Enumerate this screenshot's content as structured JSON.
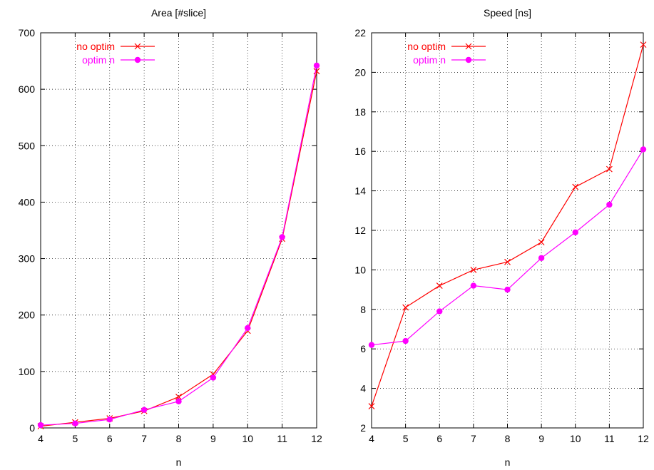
{
  "chart_data": [
    {
      "type": "line",
      "title": "Area [#slice]",
      "xlabel": "n",
      "ylabel": "",
      "x": [
        4,
        5,
        6,
        7,
        8,
        9,
        10,
        11,
        12
      ],
      "xlim": [
        4,
        12
      ],
      "ylim": [
        0,
        700
      ],
      "xticks": [
        4,
        5,
        6,
        7,
        8,
        9,
        10,
        11,
        12
      ],
      "yticks": [
        0,
        100,
        200,
        300,
        400,
        500,
        600,
        700
      ],
      "grid": true,
      "legend_position": "top-left",
      "series": [
        {
          "name": "no optim",
          "marker": "x",
          "color": "#ff0000",
          "values": [
            3,
            10,
            17,
            30,
            55,
            95,
            172,
            335,
            632
          ]
        },
        {
          "name": "optim n",
          "marker": "circle",
          "color": "#ff00ff",
          "values": [
            5,
            8,
            15,
            32,
            47,
            89,
            177,
            338,
            642
          ]
        }
      ]
    },
    {
      "type": "line",
      "title": "Speed [ns]",
      "xlabel": "n",
      "ylabel": "",
      "x": [
        4,
        5,
        6,
        7,
        8,
        9,
        10,
        11,
        12
      ],
      "xlim": [
        4,
        12
      ],
      "ylim": [
        2,
        22
      ],
      "xticks": [
        4,
        5,
        6,
        7,
        8,
        9,
        10,
        11,
        12
      ],
      "yticks": [
        2,
        4,
        6,
        8,
        10,
        12,
        14,
        16,
        18,
        20,
        22
      ],
      "grid": true,
      "legend_position": "top-left",
      "series": [
        {
          "name": "no optim",
          "marker": "x",
          "color": "#ff0000",
          "values": [
            3.1,
            8.1,
            9.2,
            10.0,
            10.4,
            11.4,
            14.2,
            15.1,
            21.4
          ]
        },
        {
          "name": "optim n",
          "marker": "circle",
          "color": "#ff00ff",
          "values": [
            6.2,
            6.4,
            7.9,
            9.2,
            9.0,
            10.6,
            11.9,
            13.3,
            16.1
          ]
        }
      ]
    }
  ]
}
